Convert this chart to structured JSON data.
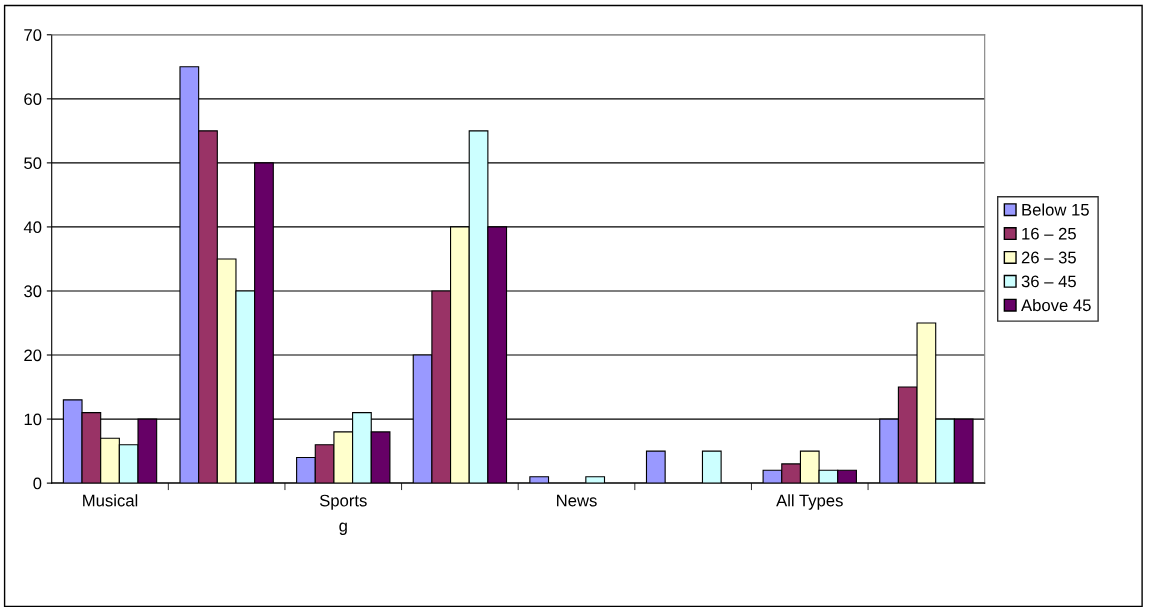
{
  "chart_data": {
    "type": "bar",
    "categories": [
      "Musical",
      null,
      "Sports\ng",
      null,
      "News",
      null,
      "All Types",
      null
    ],
    "series": [
      {
        "name": "Below 15",
        "color": "#9999ff",
        "values": [
          13,
          65,
          4,
          20,
          1,
          5,
          2,
          10
        ]
      },
      {
        "name": "16 – 25",
        "color": "#993366",
        "values": [
          11,
          55,
          6,
          30,
          null,
          null,
          3,
          15
        ]
      },
      {
        "name": "26 – 35",
        "color": "#ffffcc",
        "values": [
          7,
          35,
          8,
          40,
          null,
          null,
          5,
          25
        ]
      },
      {
        "name": "36 – 45",
        "color": "#ccffff",
        "values": [
          6,
          30,
          11,
          55,
          1,
          5,
          2,
          10
        ]
      },
      {
        "name": "Above 45",
        "color": "#660066",
        "values": [
          10,
          50,
          8,
          40,
          null,
          null,
          2,
          10
        ]
      }
    ],
    "ylim": [
      0,
      70
    ],
    "yticks": [
      0,
      10,
      20,
      30,
      40,
      50,
      60,
      70
    ],
    "grid": "y",
    "legend": "right"
  }
}
